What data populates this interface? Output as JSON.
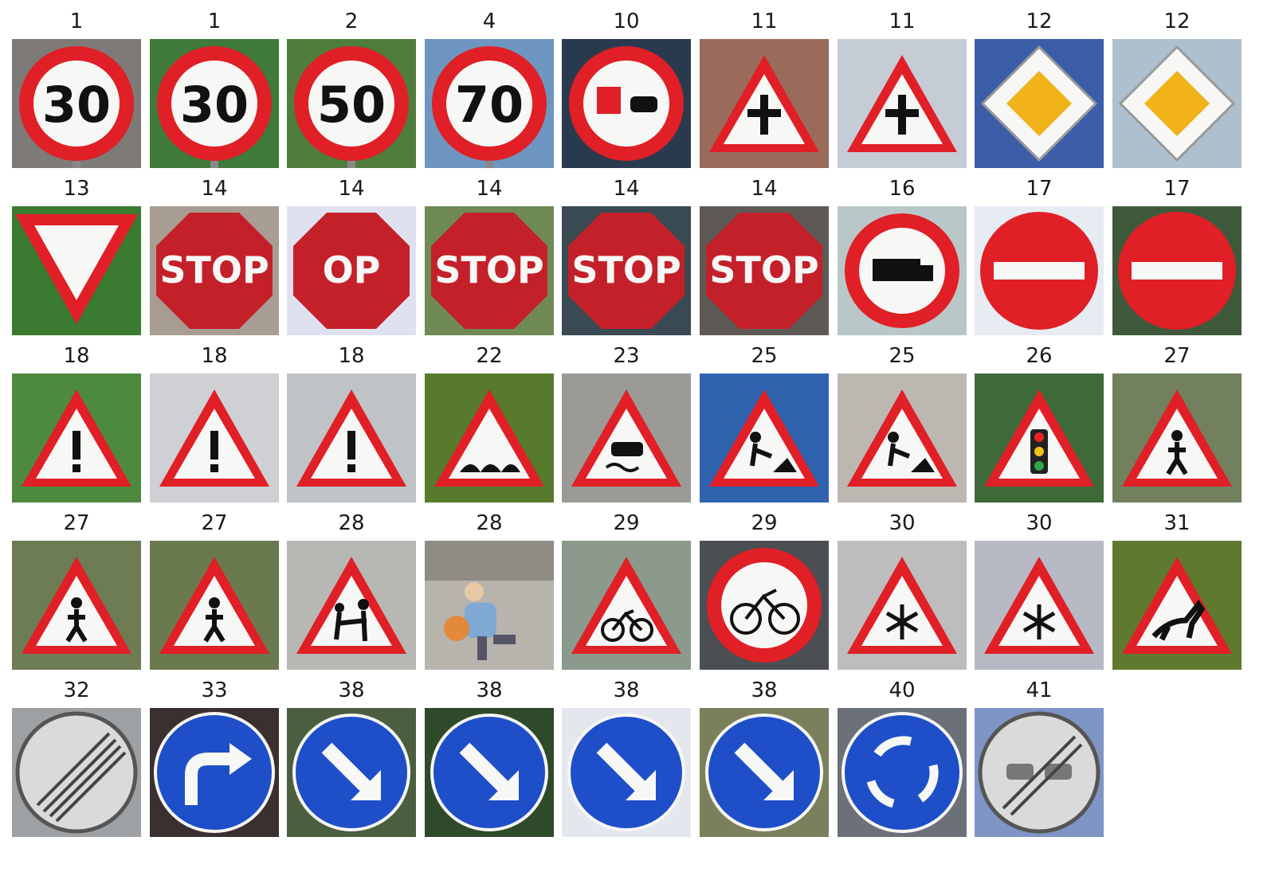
{
  "signs": [
    {
      "label": "1",
      "sign": "speed-limit",
      "text": "30",
      "bg": "#7d7a78"
    },
    {
      "label": "1",
      "sign": "speed-limit",
      "text": "30",
      "bg": "#3f7a3a"
    },
    {
      "label": "2",
      "sign": "speed-limit",
      "text": "50",
      "bg": "#4f7d3c"
    },
    {
      "label": "4",
      "sign": "speed-limit",
      "text": "70",
      "bg": "#6f96c0"
    },
    {
      "label": "10",
      "sign": "no-passing-trucks",
      "bg": "#2a3a4e"
    },
    {
      "label": "11",
      "sign": "warning-crossroads",
      "bg": "#9a6b5a"
    },
    {
      "label": "11",
      "sign": "warning-crossroads",
      "bg": "#c6ccd6"
    },
    {
      "label": "12",
      "sign": "priority-road",
      "bg": "#3c5ea8"
    },
    {
      "label": "12",
      "sign": "priority-road",
      "bg": "#aebfce"
    },
    {
      "label": "13",
      "sign": "yield",
      "bg": "#3b7a31"
    },
    {
      "label": "14",
      "sign": "stop",
      "text": "STOP",
      "bg": "#a89d92"
    },
    {
      "label": "14",
      "sign": "stop",
      "text": "OP",
      "bg": "#dfe2ee"
    },
    {
      "label": "14",
      "sign": "stop",
      "text": "STOP",
      "bg": "#6f8a55"
    },
    {
      "label": "14",
      "sign": "stop",
      "text": "STOP",
      "bg": "#3a4a52"
    },
    {
      "label": "14",
      "sign": "stop",
      "text": "STOP",
      "bg": "#5d5a55"
    },
    {
      "label": "16",
      "sign": "no-trucks",
      "bg": "#b9c7c8"
    },
    {
      "label": "17",
      "sign": "no-entry",
      "bg": "#e6ecf2"
    },
    {
      "label": "17",
      "sign": "no-entry",
      "bg": "#3e5a3a"
    },
    {
      "label": "18",
      "sign": "general-caution",
      "bg": "#4e8a3e"
    },
    {
      "label": "18",
      "sign": "general-caution",
      "bg": "#cfd0d4"
    },
    {
      "label": "18",
      "sign": "general-caution",
      "bg": "#c0c3c5"
    },
    {
      "label": "22",
      "sign": "bumpy-road",
      "bg": "#587a2c"
    },
    {
      "label": "23",
      "sign": "slippery-road",
      "bg": "#9b9a96"
    },
    {
      "label": "25",
      "sign": "road-work",
      "bg": "#2f63ae"
    },
    {
      "label": "25",
      "sign": "road-work",
      "bg": "#bdb7b2"
    },
    {
      "label": "26",
      "sign": "traffic-signals",
      "bg": "#3d6a38"
    },
    {
      "label": "27",
      "sign": "pedestrians",
      "bg": "#72805e"
    },
    {
      "label": "27",
      "sign": "pedestrians",
      "bg": "#6d7c52"
    },
    {
      "label": "27",
      "sign": "pedestrians",
      "bg": "#6b7a4e"
    },
    {
      "label": "28",
      "sign": "children-crossing",
      "bg": "#b7b8b4"
    },
    {
      "label": "28",
      "sign": "photo-child",
      "bg": "#b7b4ae"
    },
    {
      "label": "29",
      "sign": "bicycles-crossing",
      "bg": "#8b9a8c"
    },
    {
      "label": "29",
      "sign": "no-bicycles",
      "bg": "#4b4e52"
    },
    {
      "label": "30",
      "sign": "ice-snow",
      "bg": "#bdbdbd"
    },
    {
      "label": "30",
      "sign": "ice-snow",
      "bg": "#b7b9c5"
    },
    {
      "label": "31",
      "sign": "wild-animals",
      "bg": "#5f7a2e"
    },
    {
      "label": "32",
      "sign": "end-all-limits",
      "bg": "#9ea1a3"
    },
    {
      "label": "33",
      "sign": "turn-right-ahead",
      "bg": "#3a3030"
    },
    {
      "label": "38",
      "sign": "keep-right",
      "bg": "#4b5f40"
    },
    {
      "label": "38",
      "sign": "keep-right",
      "bg": "#2f4a2a"
    },
    {
      "label": "38",
      "sign": "keep-right",
      "bg": "#e4e8ee"
    },
    {
      "label": "38",
      "sign": "keep-right",
      "bg": "#7b7f5c"
    },
    {
      "label": "40",
      "sign": "roundabout",
      "bg": "#6c7078"
    },
    {
      "label": "41",
      "sign": "end-no-passing",
      "bg": "#7f95c6"
    }
  ],
  "colors": {
    "sign_red": "#e01f26",
    "sign_white": "#f7f7f5",
    "sign_blue": "#1f4fc8",
    "sign_yellow": "#f1b21a",
    "label_text": "#1a1a1a"
  }
}
